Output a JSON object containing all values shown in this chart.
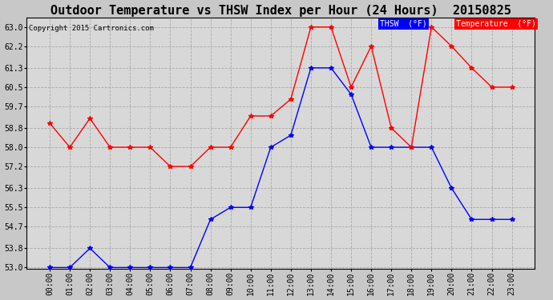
{
  "title": "Outdoor Temperature vs THSW Index per Hour (24 Hours)  20150825",
  "copyright": "Copyright 2015 Cartronics.com",
  "hours": [
    "00:00",
    "01:00",
    "02:00",
    "03:00",
    "04:00",
    "05:00",
    "06:00",
    "07:00",
    "08:00",
    "09:00",
    "10:00",
    "11:00",
    "12:00",
    "13:00",
    "14:00",
    "15:00",
    "16:00",
    "17:00",
    "18:00",
    "19:00",
    "20:00",
    "21:00",
    "22:00",
    "23:00"
  ],
  "thsw": [
    53.0,
    53.0,
    53.8,
    53.0,
    53.0,
    53.0,
    53.0,
    53.0,
    55.0,
    55.5,
    55.5,
    58.0,
    58.5,
    61.3,
    61.3,
    60.2,
    58.0,
    58.0,
    58.0,
    58.0,
    56.3,
    55.0,
    55.0,
    55.0
  ],
  "temperature": [
    59.0,
    58.0,
    59.2,
    58.0,
    58.0,
    58.0,
    57.2,
    57.2,
    58.0,
    58.0,
    59.3,
    59.3,
    60.0,
    63.0,
    63.0,
    60.5,
    62.2,
    58.8,
    58.0,
    63.0,
    62.2,
    61.3,
    60.5,
    60.5
  ],
  "thsw_color": "blue",
  "temp_color": "red",
  "ylim_min": 53.0,
  "ylim_max": 63.4,
  "yticks": [
    53.0,
    53.8,
    54.7,
    55.5,
    56.3,
    57.2,
    58.0,
    58.8,
    59.7,
    60.5,
    61.3,
    62.2,
    63.0
  ],
  "fig_bg_color": "#c8c8c8",
  "plot_bg_color": "#d8d8d8",
  "grid_color": "#aaaaaa",
  "title_color": "black",
  "tick_color": "black",
  "spine_color": "black",
  "legend_thsw_bg": "blue",
  "legend_temp_bg": "red",
  "legend_thsw_text": "THSW  (°F)",
  "legend_temp_text": "Temperature  (°F)",
  "copyright_color": "black",
  "marker": "*",
  "markersize": 4,
  "linewidth": 1.0,
  "title_fontsize": 11,
  "tick_fontsize": 7,
  "copyright_fontsize": 6.5,
  "legend_fontsize": 7
}
